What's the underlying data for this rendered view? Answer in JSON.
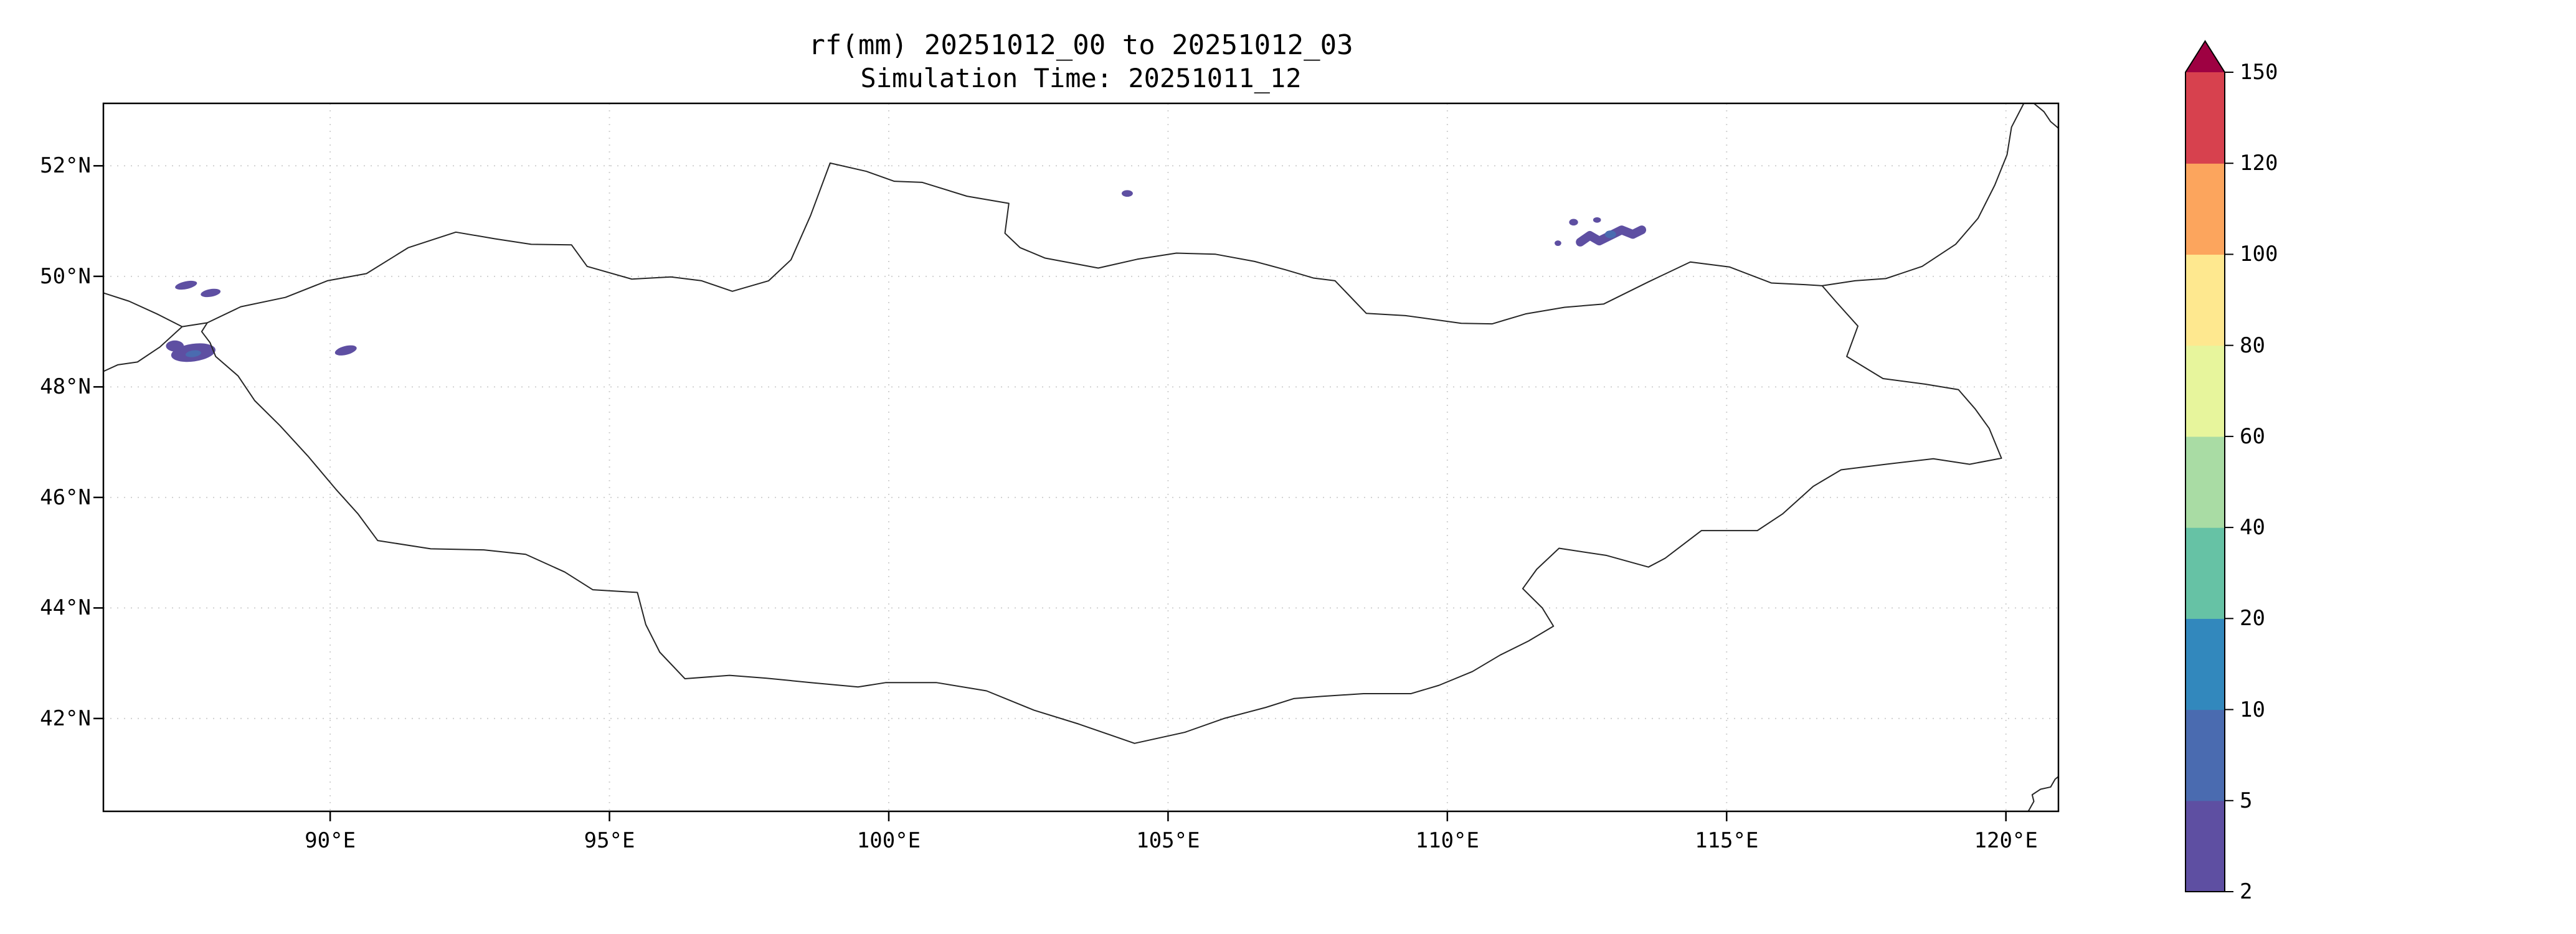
{
  "figure": {
    "title": "rf(mm) 20251012_00 to 20251012_03",
    "subtitle": "Simulation Time: 20251011_12"
  },
  "chart_data": {
    "type": "map-filled-contour",
    "title": "rf(mm) 20251012_00 to 20251012_03",
    "subtitle": "Simulation Time: 20251011_12",
    "variable": "rainfall accumulation (mm)",
    "projection": "longitude-latitude degrees",
    "grid": "dotted",
    "x_axis": {
      "range": [
        85.94,
        120.94
      ],
      "ticks": [
        90,
        95,
        100,
        105,
        110,
        115,
        120
      ],
      "tick_labels": [
        "90°E",
        "95°E",
        "100°E",
        "105°E",
        "110°E",
        "115°E",
        "120°E"
      ]
    },
    "y_axis": {
      "range": [
        40.32,
        53.13
      ],
      "ticks": [
        42,
        44,
        46,
        48,
        50,
        52
      ],
      "tick_labels": [
        "42°N",
        "44°N",
        "46°N",
        "48°N",
        "50°N",
        "52°N"
      ]
    },
    "colorbar": {
      "extend": "max",
      "bounds": [
        2,
        5,
        10,
        20,
        40,
        60,
        80,
        100,
        120,
        150
      ],
      "tick_labels": [
        "2",
        "5",
        "10",
        "20",
        "40",
        "60",
        "80",
        "100",
        "120",
        "150"
      ],
      "segment_colors": [
        "#5e4fa2",
        "#4a6bb0",
        "#3288bd",
        "#66c2a5",
        "#a9dca4",
        "#e7f59c",
        "#fee88f",
        "#fca55d",
        "#d7414e"
      ],
      "over_color": "#9e0142",
      "outline_color": "#000000"
    },
    "border_color": "#262626",
    "borders": {
      "mongolia": [
        [
          87.8,
          49.16
        ],
        [
          88.4,
          49.45
        ],
        [
          89.2,
          49.62
        ],
        [
          89.95,
          49.92
        ],
        [
          90.65,
          50.05
        ],
        [
          91.4,
          50.52
        ],
        [
          92.25,
          50.8
        ],
        [
          92.95,
          50.68
        ],
        [
          93.6,
          50.58
        ],
        [
          94.32,
          50.57
        ],
        [
          94.6,
          50.18
        ],
        [
          95.4,
          49.95
        ],
        [
          96.1,
          49.99
        ],
        [
          96.65,
          49.92
        ],
        [
          97.2,
          49.73
        ],
        [
          97.85,
          49.92
        ],
        [
          98.25,
          50.3
        ],
        [
          98.6,
          51.1
        ],
        [
          98.95,
          52.05
        ],
        [
          99.6,
          51.9
        ],
        [
          100.1,
          51.72
        ],
        [
          100.6,
          51.7
        ],
        [
          101.4,
          51.45
        ],
        [
          102.15,
          51.32
        ],
        [
          102.08,
          50.78
        ],
        [
          102.35,
          50.52
        ],
        [
          102.8,
          50.33
        ],
        [
          103.75,
          50.15
        ],
        [
          104.45,
          50.31
        ],
        [
          105.15,
          50.42
        ],
        [
          105.85,
          50.4
        ],
        [
          106.55,
          50.27
        ],
        [
          107.1,
          50.12
        ],
        [
          107.6,
          49.97
        ],
        [
          107.99,
          49.92
        ],
        [
          108.55,
          49.33
        ],
        [
          109.25,
          49.29
        ],
        [
          110.25,
          49.15
        ],
        [
          110.8,
          49.14
        ],
        [
          111.4,
          49.32
        ],
        [
          112.1,
          49.44
        ],
        [
          112.8,
          49.5
        ],
        [
          113.6,
          49.9
        ],
        [
          114.35,
          50.26
        ],
        [
          115.05,
          50.17
        ],
        [
          115.8,
          49.88
        ],
        [
          116.4,
          49.85
        ],
        [
          116.71,
          49.83
        ],
        [
          116.95,
          49.55
        ],
        [
          117.35,
          49.1
        ],
        [
          117.15,
          48.55
        ],
        [
          117.8,
          48.15
        ],
        [
          118.55,
          48.05
        ],
        [
          119.15,
          47.95
        ],
        [
          119.45,
          47.6
        ],
        [
          119.7,
          47.25
        ],
        [
          119.92,
          46.71
        ],
        [
          119.35,
          46.6
        ],
        [
          118.7,
          46.7
        ],
        [
          117.85,
          46.6
        ],
        [
          117.05,
          46.5
        ],
        [
          116.55,
          46.2
        ],
        [
          116.0,
          45.7
        ],
        [
          115.55,
          45.4
        ],
        [
          114.55,
          45.4
        ],
        [
          113.9,
          44.9
        ],
        [
          113.6,
          44.74
        ],
        [
          112.85,
          44.95
        ],
        [
          112.0,
          45.08
        ],
        [
          111.6,
          44.7
        ],
        [
          111.35,
          44.35
        ],
        [
          111.7,
          44.0
        ],
        [
          111.9,
          43.67
        ],
        [
          111.45,
          43.4
        ],
        [
          110.95,
          43.15
        ],
        [
          110.45,
          42.85
        ],
        [
          109.85,
          42.6
        ],
        [
          109.35,
          42.45
        ],
        [
          108.5,
          42.45
        ],
        [
          107.75,
          42.4
        ],
        [
          107.25,
          42.36
        ],
        [
          106.75,
          42.2
        ],
        [
          106.0,
          42.0
        ],
        [
          105.3,
          41.75
        ],
        [
          104.4,
          41.55
        ],
        [
          103.4,
          41.9
        ],
        [
          102.6,
          42.15
        ],
        [
          101.75,
          42.5
        ],
        [
          100.85,
          42.65
        ],
        [
          99.95,
          42.65
        ],
        [
          99.45,
          42.57
        ],
        [
          98.6,
          42.65
        ],
        [
          97.8,
          42.73
        ],
        [
          97.15,
          42.78
        ],
        [
          96.35,
          42.72
        ],
        [
          95.9,
          43.2
        ],
        [
          95.65,
          43.7
        ],
        [
          95.5,
          44.28
        ],
        [
          94.7,
          44.33
        ],
        [
          94.2,
          44.65
        ],
        [
          93.5,
          44.97
        ],
        [
          92.75,
          45.05
        ],
        [
          91.8,
          45.07
        ],
        [
          90.85,
          45.22
        ],
        [
          90.5,
          45.7
        ],
        [
          90.1,
          46.15
        ],
        [
          89.6,
          46.75
        ],
        [
          89.1,
          47.3
        ],
        [
          88.65,
          47.75
        ],
        [
          88.35,
          48.2
        ],
        [
          87.95,
          48.55
        ],
        [
          87.85,
          48.8
        ],
        [
          87.7,
          49.0
        ],
        [
          87.8,
          49.16
        ]
      ],
      "others": [
        [
          [
            85.94,
            49.7
          ],
          [
            86.4,
            49.55
          ],
          [
            86.9,
            49.32
          ],
          [
            87.35,
            49.09
          ],
          [
            87.8,
            49.16
          ]
        ],
        [
          [
            87.35,
            49.09
          ],
          [
            86.95,
            48.72
          ],
          [
            86.55,
            48.45
          ],
          [
            86.2,
            48.4
          ],
          [
            85.94,
            48.28
          ]
        ],
        [
          [
            116.71,
            49.83
          ],
          [
            117.3,
            49.92
          ],
          [
            117.85,
            49.96
          ],
          [
            118.5,
            50.18
          ],
          [
            119.1,
            50.58
          ],
          [
            119.5,
            51.05
          ],
          [
            119.8,
            51.65
          ],
          [
            120.02,
            52.2
          ],
          [
            120.1,
            52.7
          ],
          [
            120.32,
            53.13
          ]
        ],
        [
          [
            120.5,
            53.13
          ],
          [
            120.68,
            52.98
          ],
          [
            120.8,
            52.8
          ],
          [
            120.94,
            52.68
          ]
        ],
        [
          [
            120.4,
            40.32
          ],
          [
            120.5,
            40.5
          ],
          [
            120.47,
            40.62
          ],
          [
            120.62,
            40.72
          ],
          [
            120.8,
            40.76
          ],
          [
            120.88,
            40.9
          ],
          [
            120.94,
            40.95
          ]
        ]
      ]
    },
    "rain_cells": [
      {
        "shape": "ellipse",
        "lon": 87.42,
        "lat": 49.84,
        "rx": 0.2,
        "ry": 0.07,
        "rot": -12,
        "color": "#5e4fa2"
      },
      {
        "shape": "ellipse",
        "lon": 87.86,
        "lat": 49.7,
        "rx": 0.18,
        "ry": 0.07,
        "rot": -10,
        "color": "#5e4fa2"
      },
      {
        "shape": "ellipse",
        "lon": 87.55,
        "lat": 48.62,
        "rx": 0.4,
        "ry": 0.16,
        "rot": -8,
        "color": "#5e4fa2"
      },
      {
        "shape": "ellipse",
        "lon": 87.22,
        "lat": 48.74,
        "rx": 0.16,
        "ry": 0.1,
        "rot": 0,
        "color": "#5e4fa2"
      },
      {
        "shape": "ellipse",
        "lon": 87.55,
        "lat": 48.6,
        "rx": 0.14,
        "ry": 0.06,
        "rot": -8,
        "color": "#4a6bb0"
      },
      {
        "shape": "ellipse",
        "lon": 90.28,
        "lat": 48.66,
        "rx": 0.2,
        "ry": 0.08,
        "rot": -14,
        "color": "#5e4fa2"
      },
      {
        "shape": "ellipse",
        "lon": 104.27,
        "lat": 51.5,
        "rx": 0.1,
        "ry": 0.06,
        "rot": 0,
        "color": "#5e4fa2"
      },
      {
        "shape": "worm",
        "points": [
          [
            112.38,
            50.62
          ],
          [
            112.55,
            50.74
          ],
          [
            112.72,
            50.64
          ],
          [
            112.92,
            50.74
          ],
          [
            113.12,
            50.84
          ],
          [
            113.32,
            50.76
          ],
          [
            113.48,
            50.84
          ]
        ],
        "width": 0.16,
        "color": "#5e4fa2"
      },
      {
        "shape": "ellipse",
        "lon": 112.92,
        "lat": 50.76,
        "rx": 0.1,
        "ry": 0.07,
        "rot": 0,
        "color": "#4a6bb0"
      },
      {
        "shape": "ellipse",
        "lon": 112.26,
        "lat": 50.98,
        "rx": 0.08,
        "ry": 0.06,
        "rot": 0,
        "color": "#5e4fa2"
      },
      {
        "shape": "ellipse",
        "lon": 112.68,
        "lat": 51.02,
        "rx": 0.07,
        "ry": 0.05,
        "rot": 0,
        "color": "#5e4fa2"
      },
      {
        "shape": "ellipse",
        "lon": 111.98,
        "lat": 50.6,
        "rx": 0.06,
        "ry": 0.05,
        "rot": 0,
        "color": "#5e4fa2"
      }
    ]
  }
}
